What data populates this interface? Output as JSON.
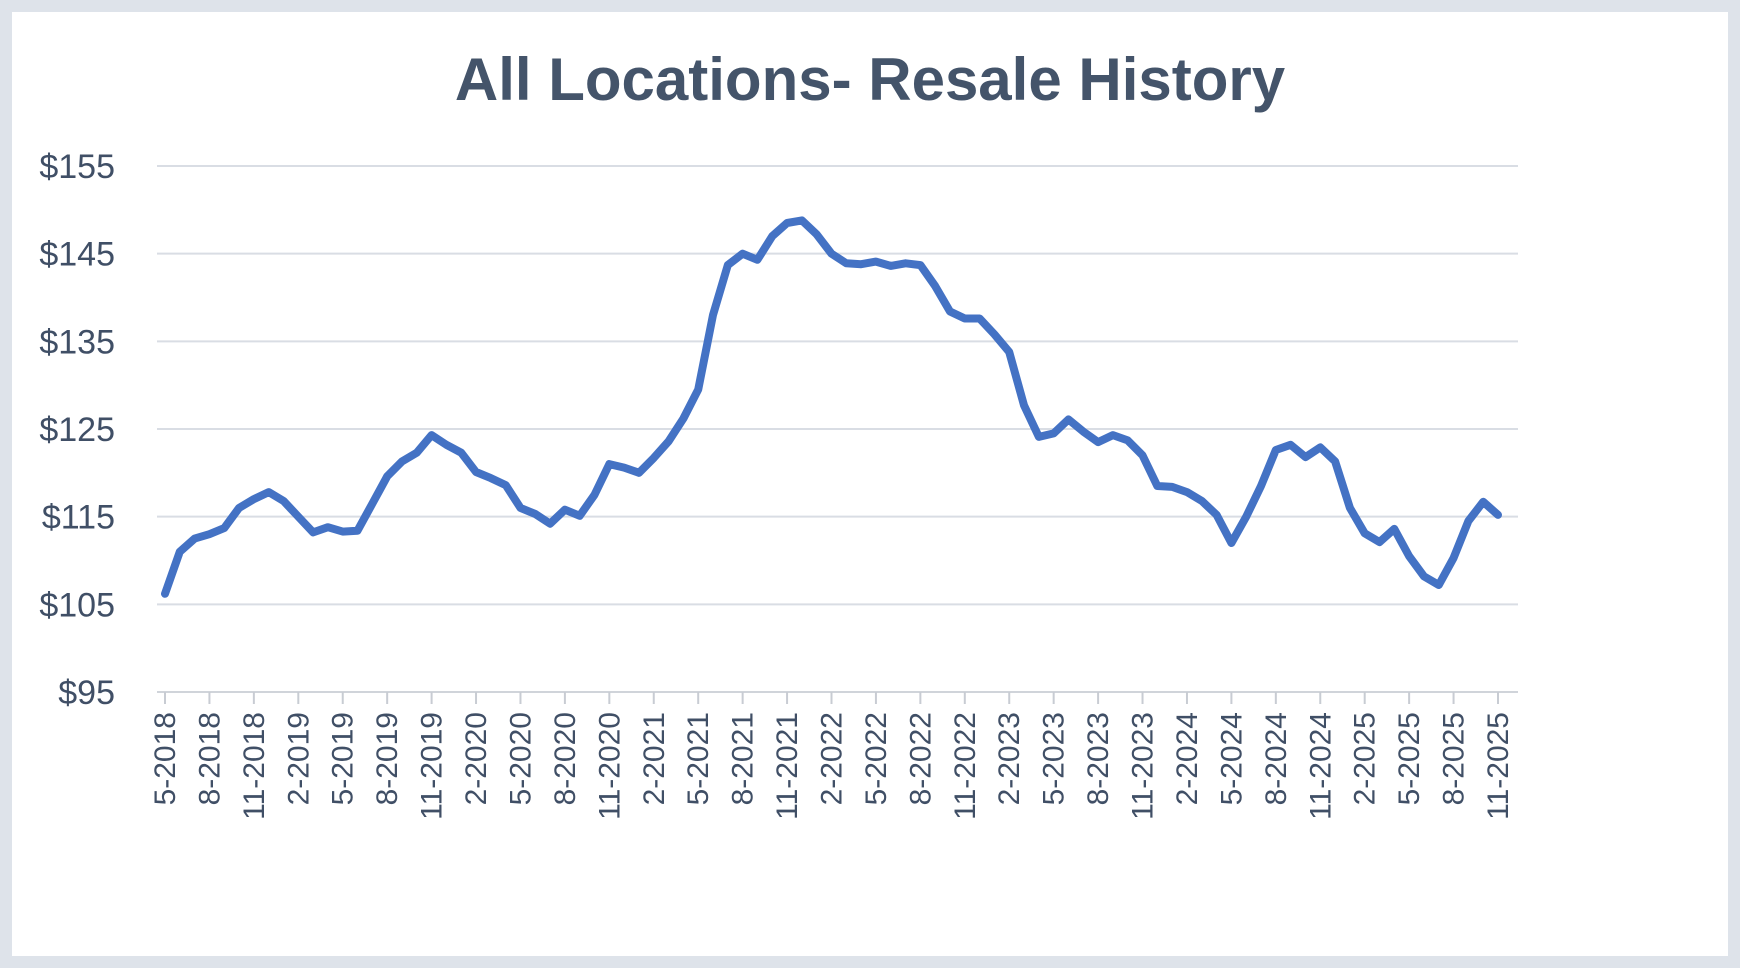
{
  "chart_data": {
    "type": "line",
    "title": "All Locations- Resale History",
    "xlabel": "",
    "ylabel": "",
    "ylim": [
      95,
      155
    ],
    "yticks": [
      95,
      105,
      115,
      125,
      135,
      145,
      155
    ],
    "ytick_labels": [
      "$95",
      "$105",
      "$115",
      "$125",
      "$135",
      "$145",
      "$155"
    ],
    "xtick_labels": [
      "5-2018",
      "8-2018",
      "11-2018",
      "2-2019",
      "5-2019",
      "8-2019",
      "11-2019",
      "2-2020",
      "5-2020",
      "8-2020",
      "11-2020",
      "2-2021",
      "5-2021",
      "8-2021",
      "11-2021",
      "2-2022",
      "5-2022",
      "8-2022",
      "11-2022",
      "2-2023",
      "5-2023",
      "8-2023",
      "11-2023",
      "2-2024",
      "5-2024",
      "8-2024",
      "11-2024",
      "2-2025",
      "5-2025",
      "8-2025",
      "11-2025"
    ],
    "grid": true,
    "line_color": "#4472c4",
    "series": [
      {
        "values": [
          106.2,
          111,
          112.5,
          113,
          113.7,
          116,
          117,
          117.8,
          116.8,
          115,
          113.2,
          113.8,
          113.3,
          113.4,
          116.5,
          119.6,
          121.3,
          122.3,
          124.3,
          123.2,
          122.3,
          120.1,
          119.4,
          118.6,
          116,
          115.3,
          114.2,
          115.8,
          115.1,
          117.5,
          121,
          120.6,
          120,
          121.7,
          123.6,
          126.2,
          129.5,
          138,
          143.7,
          145,
          144.3,
          147,
          148.5,
          148.8,
          147.2,
          145,
          143.9,
          143.8,
          144.1,
          143.6,
          143.9,
          143.7,
          141.3,
          138.4,
          137.6,
          137.6,
          135.8,
          133.8,
          127.7,
          124.1,
          124.5,
          126.1,
          124.7,
          123.5,
          124.3,
          123.7,
          122,
          118.5,
          118.4,
          117.8,
          116.8,
          115.2,
          112,
          115,
          118.5,
          122.6,
          123.2,
          121.8,
          122.9,
          121.3,
          116,
          113.1,
          112.1,
          113.6,
          110.5,
          108.2,
          107.2,
          110.3,
          114.5,
          116.7,
          115.2
        ]
      }
    ]
  }
}
